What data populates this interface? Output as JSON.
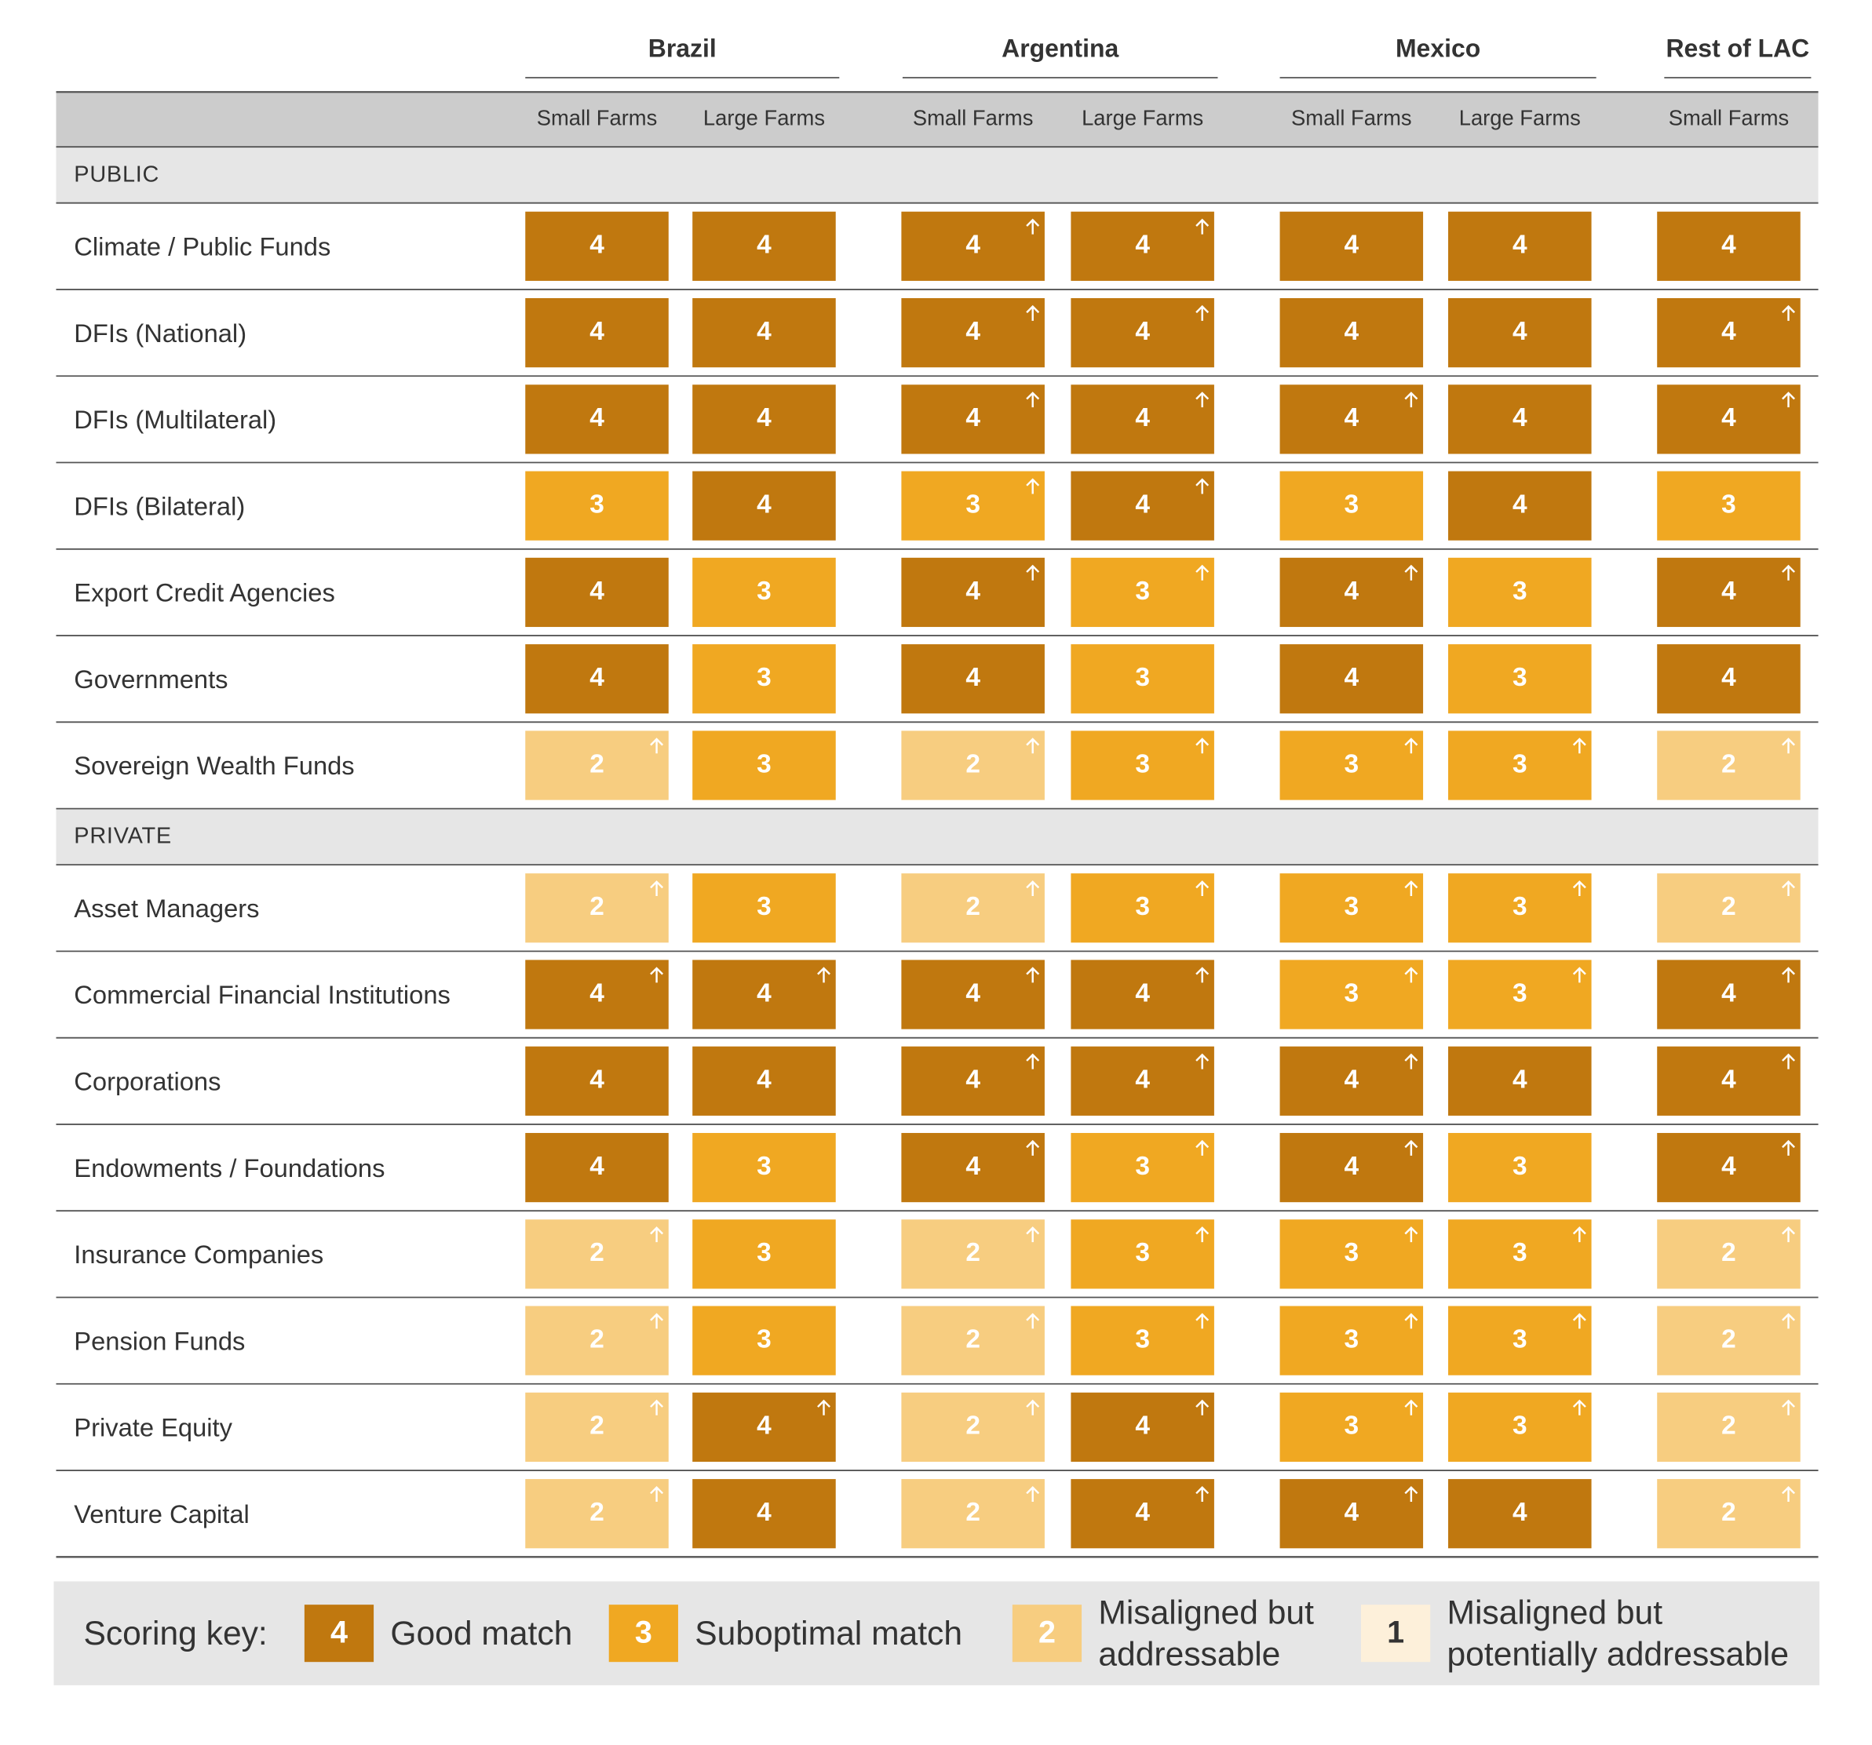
{
  "groups": [
    {
      "name": "Brazil",
      "columns": [
        "Small Farms",
        "Large Farms"
      ]
    },
    {
      "name": "Argentina",
      "columns": [
        "Small Farms",
        "Large Farms"
      ]
    },
    {
      "name": "Mexico",
      "columns": [
        "Small Farms",
        "Large Farms"
      ]
    },
    {
      "name": "Rest of LAC",
      "columns": [
        "Small Farms"
      ]
    }
  ],
  "sections": [
    {
      "name": "PUBLIC",
      "rows": [
        {
          "label": "Climate / Public Funds",
          "scores": [
            "4",
            "4",
            "4",
            "4",
            "4",
            "4",
            "4"
          ],
          "arrows": [
            false,
            false,
            true,
            true,
            false,
            false,
            false
          ]
        },
        {
          "label": "DFIs (National)",
          "scores": [
            "4",
            "4",
            "4",
            "4",
            "4",
            "4",
            "4"
          ],
          "arrows": [
            false,
            false,
            true,
            true,
            false,
            false,
            true
          ]
        },
        {
          "label": "DFIs (Multilateral)",
          "scores": [
            "4",
            "4",
            "4",
            "4",
            "4",
            "4",
            "4"
          ],
          "arrows": [
            false,
            false,
            true,
            true,
            true,
            false,
            true
          ]
        },
        {
          "label": "DFIs (Bilateral)",
          "scores": [
            "3",
            "4",
            "3",
            "4",
            "3",
            "4",
            "3"
          ],
          "arrows": [
            false,
            false,
            true,
            true,
            false,
            false,
            false
          ]
        },
        {
          "label": "Export Credit Agencies",
          "scores": [
            "4",
            "3",
            "4",
            "3",
            "4",
            "3",
            "4"
          ],
          "arrows": [
            false,
            false,
            true,
            true,
            true,
            false,
            true
          ]
        },
        {
          "label": "Governments",
          "scores": [
            "4",
            "3",
            "4",
            "3",
            "4",
            "3",
            "4"
          ],
          "arrows": [
            false,
            false,
            false,
            false,
            false,
            false,
            false
          ]
        },
        {
          "label": "Sovereign Wealth Funds",
          "scores": [
            "2",
            "3",
            "2",
            "3",
            "3",
            "3",
            "2"
          ],
          "arrows": [
            true,
            false,
            true,
            true,
            true,
            true,
            true
          ]
        }
      ]
    },
    {
      "name": "PRIVATE",
      "rows": [
        {
          "label": "Asset Managers",
          "scores": [
            "2",
            "3",
            "2",
            "3",
            "3",
            "3",
            "2"
          ],
          "arrows": [
            true,
            false,
            true,
            true,
            true,
            true,
            true
          ]
        },
        {
          "label": "Commercial Financial Institutions",
          "scores": [
            "4",
            "4",
            "4",
            "4",
            "3",
            "3",
            "4"
          ],
          "arrows": [
            true,
            true,
            true,
            true,
            true,
            true,
            true
          ]
        },
        {
          "label": "Corporations",
          "scores": [
            "4",
            "4",
            "4",
            "4",
            "4",
            "4",
            "4"
          ],
          "arrows": [
            false,
            false,
            true,
            true,
            true,
            false,
            true
          ]
        },
        {
          "label": "Endowments / Foundations",
          "scores": [
            "4",
            "3",
            "4",
            "3",
            "4",
            "3",
            "4"
          ],
          "arrows": [
            false,
            false,
            true,
            true,
            true,
            false,
            true
          ]
        },
        {
          "label": "Insurance Companies",
          "scores": [
            "2",
            "3",
            "2",
            "3",
            "3",
            "3",
            "2"
          ],
          "arrows": [
            true,
            false,
            true,
            true,
            true,
            true,
            true
          ]
        },
        {
          "label": "Pension Funds",
          "scores": [
            "2",
            "3",
            "2",
            "3",
            "3",
            "3",
            "2"
          ],
          "arrows": [
            true,
            false,
            true,
            true,
            true,
            true,
            true
          ]
        },
        {
          "label": "Private Equity",
          "scores": [
            "2",
            "4",
            "2",
            "4",
            "3",
            "3",
            "2"
          ],
          "arrows": [
            true,
            true,
            true,
            true,
            true,
            true,
            true
          ]
        },
        {
          "label": "Venture Capital",
          "scores": [
            "2",
            "4",
            "2",
            "4",
            "4",
            "4",
            "2"
          ],
          "arrows": [
            true,
            false,
            true,
            true,
            true,
            false,
            true
          ]
        }
      ]
    }
  ],
  "key": {
    "title": "Scoring key:",
    "items": [
      {
        "score": "4",
        "label": [
          "Good match"
        ],
        "color": "#c0780f"
      },
      {
        "score": "3",
        "label": [
          "Suboptimal match"
        ],
        "color": "#f0a822"
      },
      {
        "score": "2",
        "label": [
          "Misaligned but",
          "addressable"
        ],
        "color": "#f7cd80"
      },
      {
        "score": "1",
        "label": [
          "Misaligned but",
          "potentially addressable"
        ],
        "color": "#fdf0da"
      }
    ]
  }
}
